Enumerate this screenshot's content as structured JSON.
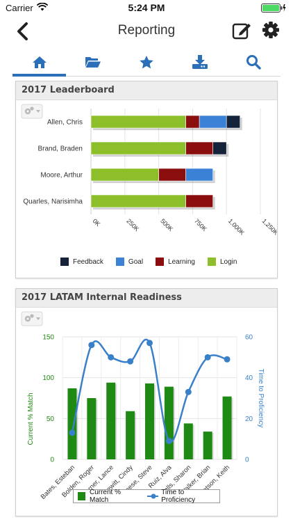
{
  "status": {
    "carrier": "Carrier",
    "time": "5:24 PM"
  },
  "nav": {
    "title": "Reporting"
  },
  "tabs": [
    {
      "icon": "home-icon",
      "active": true
    },
    {
      "icon": "folder-open-icon",
      "active": false
    },
    {
      "icon": "star-icon",
      "active": false
    },
    {
      "icon": "download-tray-icon",
      "active": false
    },
    {
      "icon": "search-icon",
      "active": false
    }
  ],
  "colors": {
    "accent": "#2a6fb7",
    "feedback": "#14233a",
    "goal": "#3b82d6",
    "learning": "#8b0e0e",
    "login": "#8dbf2a",
    "match": "#1f8a13",
    "proficiency": "#3a80c9"
  },
  "chart_data": [
    {
      "type": "bar",
      "orientation": "horizontal",
      "stacked": true,
      "title": "2017 Leaderboard",
      "categories": [
        "Allen, Chris",
        "Brand, Braden",
        "Moore, Arthur",
        "Quarles, Narisimha"
      ],
      "series": [
        {
          "name": "Login",
          "values": [
            700000,
            700000,
            500000,
            700000
          ]
        },
        {
          "name": "Learning",
          "values": [
            100000,
            200000,
            200000,
            200000
          ]
        },
        {
          "name": "Goal",
          "values": [
            200000,
            0,
            200000,
            0
          ]
        },
        {
          "name": "Feedback",
          "values": [
            100000,
            100000,
            0,
            0
          ]
        }
      ],
      "x_ticks": [
        "0K",
        "250K",
        "500K",
        "750K",
        "1,000K",
        "1,250K"
      ],
      "xlim": [
        0,
        1250000
      ],
      "legend": [
        "Feedback",
        "Goal",
        "Learning",
        "Login"
      ],
      "legend_position": "bottom"
    },
    {
      "type": "bar+line",
      "title": "2017 LATAM Internal Readiness",
      "categories": [
        "Bates, Esteban",
        "Bolden, Roger",
        "Garner, Lance",
        "Lewitt, Cindy",
        "Reese, Steve",
        "Ruiz, Alva",
        "Spells, Sharon",
        "Walker, Brian",
        "Watson, Keith"
      ],
      "series": [
        {
          "name": "Current % Match",
          "axis": "left",
          "kind": "bar",
          "values": [
            87,
            75,
            94,
            59,
            93,
            89,
            44,
            34,
            77
          ]
        },
        {
          "name": "Time to Proficiency",
          "axis": "right",
          "kind": "line",
          "values": [
            13,
            56,
            50,
            48,
            57,
            9,
            33,
            50,
            49
          ]
        }
      ],
      "ylabel": "Current % Match",
      "y2label": "Time to Proficiency",
      "left_ticks": [
        "0",
        "50",
        "100",
        "150"
      ],
      "right_ticks": [
        "0",
        "20",
        "40",
        "60"
      ],
      "ylim": [
        0,
        150
      ],
      "y2lim": [
        0,
        60
      ],
      "legend": [
        "Current % Match",
        "Time to Proficiency"
      ],
      "legend_position": "bottom"
    }
  ]
}
